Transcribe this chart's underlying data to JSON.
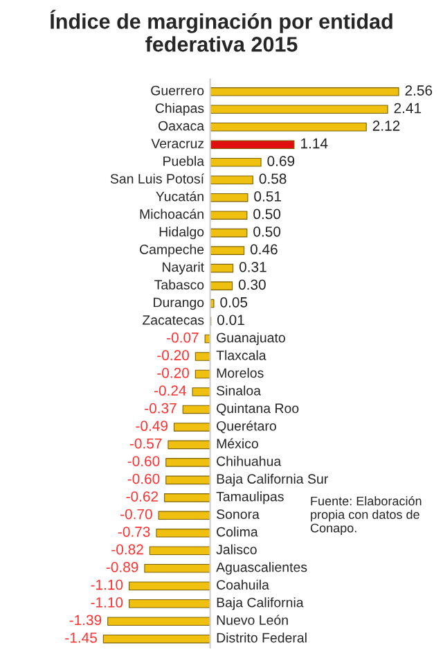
{
  "chart_data": {
    "type": "bar",
    "orientation": "horizontal",
    "title": "Índice de marginación por entidad federativa 2015",
    "categories": [
      "Guerrero",
      "Chiapas",
      "Oaxaca",
      "Veracruz",
      "Puebla",
      "San Luis Potosí",
      "Yucatán",
      "Michoacán",
      "Hidalgo",
      "Campeche",
      "Nayarit",
      "Tabasco",
      "Durango",
      "Zacatecas",
      "Guanajuato",
      "Tlaxcala",
      "Morelos",
      "Sinaloa",
      "Quintana Roo",
      "Querétaro",
      "México",
      "Chihuahua",
      "Baja California Sur",
      "Tamaulipas",
      "Sonora",
      "Colima",
      "Jalisco",
      "Aguascalientes",
      "Coahuila",
      "Baja California",
      "Nuevo León",
      "Distrito Federal"
    ],
    "values": [
      2.56,
      2.41,
      2.12,
      1.14,
      0.69,
      0.58,
      0.51,
      0.5,
      0.5,
      0.46,
      0.31,
      0.3,
      0.05,
      0.01,
      -0.07,
      -0.2,
      -0.2,
      -0.24,
      -0.37,
      -0.49,
      -0.57,
      -0.6,
      -0.6,
      -0.62,
      -0.7,
      -0.73,
      -0.82,
      -0.89,
      -1.1,
      -1.1,
      -1.39,
      -1.45
    ],
    "value_labels": [
      "2.56",
      "2.41",
      "2.12",
      "1.14",
      "0.69",
      "0.58",
      "0.51",
      "0.50",
      "0.50",
      "0.46",
      "0.31",
      "0.30",
      "0.05",
      "0.01",
      "-0.07",
      "-0.20",
      "-0.20",
      "-0.24",
      "-0.37",
      "-0.49",
      "-0.57",
      "-0.60",
      "-0.60",
      "-0.62",
      "-0.70",
      "-0.73",
      "-0.82",
      "-0.89",
      "-1.10",
      "-1.10",
      "-1.39",
      "-1.45"
    ],
    "colors": [
      "#f0c010",
      "#f0c010",
      "#f0c010",
      "#e01010",
      "#f0c010",
      "#f0c010",
      "#f0c010",
      "#f0c010",
      "#f0c010",
      "#f0c010",
      "#f0c010",
      "#f0c010",
      "#f0c010",
      "#f0c010",
      "#f0c010",
      "#f0c010",
      "#f0c010",
      "#f0c010",
      "#f0c010",
      "#f0c010",
      "#f0c010",
      "#f0c010",
      "#f0c010",
      "#f0c010",
      "#f0c010",
      "#f0c010",
      "#f0c010",
      "#f0c010",
      "#f0c010",
      "#f0c010",
      "#f0c010",
      "#f0c010"
    ],
    "annotations": [
      "Fuente: Elaboración propia con datos de Conapo."
    ]
  }
}
